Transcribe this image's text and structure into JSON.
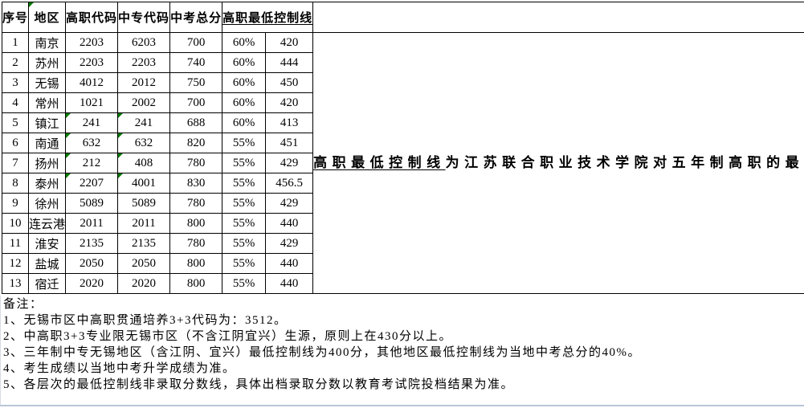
{
  "table": {
    "headers": {
      "no": "序号",
      "region": "地区",
      "gz": "高职代码",
      "zz": "中专代码",
      "total": "中考总分",
      "control_line": "高职最低控制线",
      "remark": "备注"
    },
    "rows": [
      {
        "no": "1",
        "region": "南京",
        "gz": "2203",
        "zz": "6203",
        "total": "700",
        "pct": "60%",
        "line": "420",
        "mark": false
      },
      {
        "no": "2",
        "region": "苏州",
        "gz": "2203",
        "zz": "2203",
        "total": "740",
        "pct": "60%",
        "line": "444",
        "mark": false
      },
      {
        "no": "3",
        "region": "无锡",
        "gz": "4012",
        "zz": "2012",
        "total": "750",
        "pct": "60%",
        "line": "450",
        "mark": false
      },
      {
        "no": "4",
        "region": "常州",
        "gz": "1021",
        "zz": "2002",
        "total": "700",
        "pct": "60%",
        "line": "420",
        "mark": false
      },
      {
        "no": "5",
        "region": "镇江",
        "gz": "241",
        "zz": "241",
        "total": "688",
        "pct": "60%",
        "line": "413",
        "mark": true
      },
      {
        "no": "6",
        "region": "南通",
        "gz": "632",
        "zz": "632",
        "total": "820",
        "pct": "55%",
        "line": "451",
        "mark": true
      },
      {
        "no": "7",
        "region": "扬州",
        "gz": "212",
        "zz": "408",
        "total": "780",
        "pct": "55%",
        "line": "429",
        "mark": true
      },
      {
        "no": "8",
        "region": "泰州",
        "gz": "2207",
        "zz": "4001",
        "total": "830",
        "pct": "55%",
        "line": "456.5",
        "mark": true
      },
      {
        "no": "9",
        "region": "徐州",
        "gz": "5089",
        "zz": "5089",
        "total": "780",
        "pct": "55%",
        "line": "429",
        "mark": false
      },
      {
        "no": "10",
        "region": "连云港",
        "gz": "2011",
        "zz": "2011",
        "total": "800",
        "pct": "55%",
        "line": "440",
        "mark": false
      },
      {
        "no": "11",
        "region": "淮安",
        "gz": "2135",
        "zz": "2135",
        "total": "780",
        "pct": "55%",
        "line": "429",
        "mark": false
      },
      {
        "no": "12",
        "region": "盐城",
        "gz": "2050",
        "zz": "2050",
        "total": "800",
        "pct": "55%",
        "line": "440",
        "mark": false
      },
      {
        "no": "13",
        "region": "宿迁",
        "gz": "2020",
        "zz": "2020",
        "total": "800",
        "pct": "55%",
        "line": "440",
        "mark": false
      }
    ],
    "remark": {
      "underlined": "高职最低控制线",
      "rest": "为江苏联合职业技术学院对五年制高职的最低分数要求，并非录取分数线。具体出档分数按照招生计划从高分到低分录取结果为准。"
    }
  },
  "notes": {
    "title": "备注：",
    "items": [
      "1、无锡市区中高职贯通培养3+3代码为：3512。",
      "2、中高职3+3专业限无锡市区（不含江阴宜兴）生源，原则上在430分以上。",
      "3、三年制中专无锡地区（含江阴、宜兴）最低控制线为400分，其他地区最低控制线为当地中考总分的40%。",
      "4、考生成绩以当地中考升学成绩为准。",
      "5、各层次的最低控制线非录取分数线，具体出档录取分数以教育考试院投档结果为准。"
    ]
  },
  "colors": {
    "flag_triangle": "#007b00",
    "bottom_line": "#b8c6d8",
    "border": "#000000"
  }
}
